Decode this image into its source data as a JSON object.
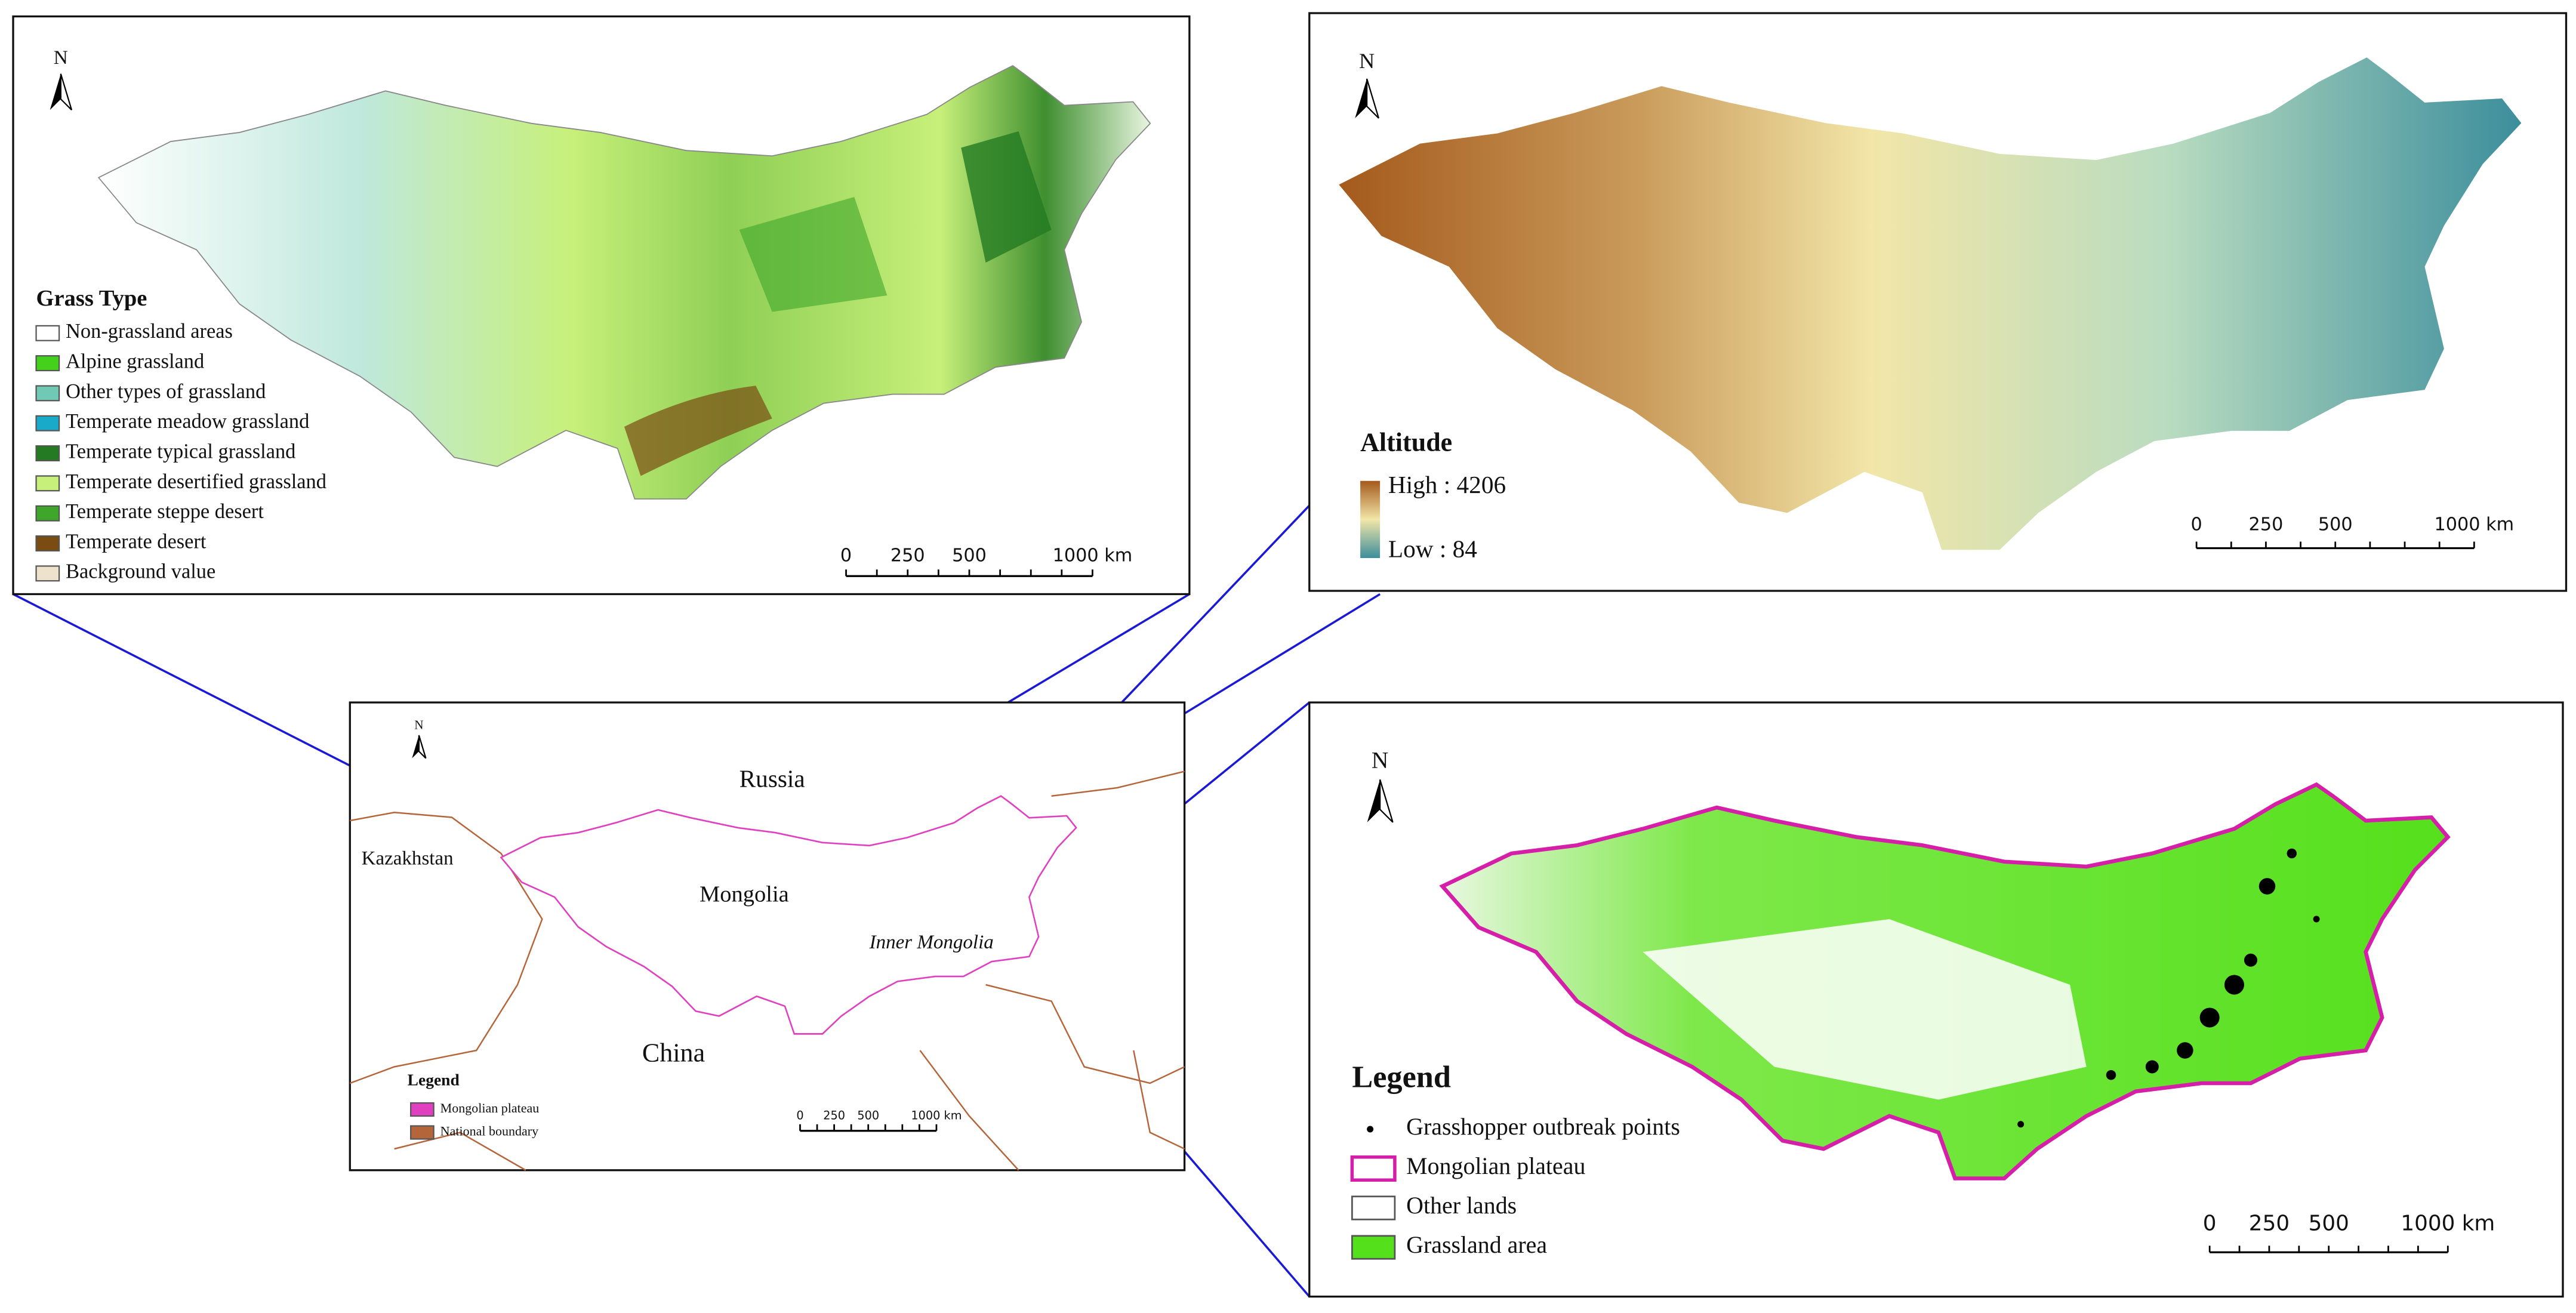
{
  "grass_panel": {
    "north": "N",
    "legend_title": "Grass Type",
    "legend_items": [
      {
        "label": "Non-grassland areas",
        "color": "#ffffff"
      },
      {
        "label": "Alpine grassland",
        "color": "#44d11c"
      },
      {
        "label": "Other types of grassland",
        "color": "#6fc9b4"
      },
      {
        "label": "Temperate meadow grassland",
        "color": "#19a9c9"
      },
      {
        "label": "Temperate typical grassland",
        "color": "#237a22"
      },
      {
        "label": "Temperate desertified grassland",
        "color": "#c7f07a"
      },
      {
        "label": "Temperate steppe desert",
        "color": "#3ea62a"
      },
      {
        "label": "Temperate desert",
        "color": "#7a4b12"
      },
      {
        "label": "Background value",
        "color": "#efe2cc"
      }
    ],
    "scale_labels": [
      "0",
      "250",
      "500",
      "1000 km"
    ]
  },
  "altitude_panel": {
    "north": "N",
    "legend_title": "Altitude",
    "high": "High : 4206",
    "low": "Low : 84",
    "scale_labels": [
      "0",
      "250",
      "500",
      "1000 km"
    ]
  },
  "overview_panel": {
    "north": "N",
    "places": {
      "russia": "Russia",
      "kazakhstan": "Kazakhstan",
      "mongolia": "Mongolia",
      "inner_mongolia": "Inner Mongolia",
      "china": "China"
    },
    "legend_title": "Legend",
    "legend_items": [
      {
        "label": "Mongolian plateau",
        "color": "#e040c0"
      },
      {
        "label": "National boundary",
        "color": "#b5653a"
      }
    ],
    "scale_labels": [
      "0",
      "250",
      "500",
      "1000 km"
    ]
  },
  "outbreak_panel": {
    "north": "N",
    "legend_title": "Legend",
    "legend_items": [
      {
        "label": "Grasshopper outbreak points",
        "color": "#000000"
      },
      {
        "label": "Mongolian plateau",
        "color": "#d61fa8"
      },
      {
        "label": "Other lands",
        "color": "#ffffff"
      },
      {
        "label": "Grassland area",
        "color": "#55e01c"
      }
    ],
    "scale_labels": [
      "0",
      "250",
      "500",
      "1000 km"
    ]
  }
}
